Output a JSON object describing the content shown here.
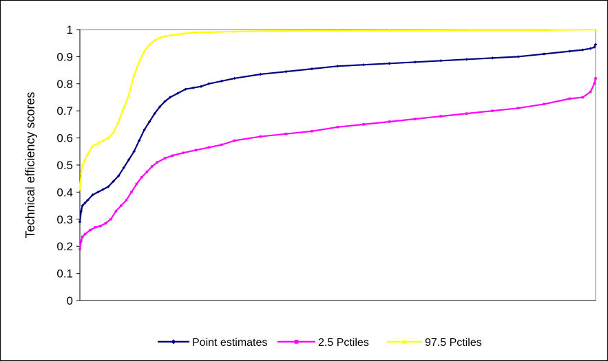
{
  "chart_data": {
    "type": "line",
    "title": "",
    "xlabel": "",
    "ylabel": "Technical efficiency scores",
    "ylim": [
      0,
      1
    ],
    "yticks": [
      "0",
      "0.1",
      "0.2",
      "0.3",
      "0.4",
      "0.5",
      "0.6",
      "0.7",
      "0.8",
      "0.9",
      "1"
    ],
    "x_range": [
      0,
      200
    ],
    "grid": false,
    "legend_position": "bottom",
    "series": [
      {
        "name": "Point estimates",
        "color": "#000080",
        "marker": "diamond",
        "x": [
          0,
          0.5,
          1,
          2,
          3,
          5,
          7,
          9,
          11,
          13,
          15,
          17,
          19,
          21,
          23,
          25,
          27,
          29,
          31,
          33,
          35,
          38,
          41,
          44,
          47,
          50,
          55,
          60,
          70,
          80,
          90,
          100,
          110,
          120,
          130,
          140,
          150,
          160,
          170,
          180,
          190,
          195,
          198,
          199.5,
          200
        ],
        "y": [
          0.29,
          0.33,
          0.35,
          0.36,
          0.37,
          0.39,
          0.4,
          0.41,
          0.42,
          0.44,
          0.46,
          0.49,
          0.52,
          0.55,
          0.59,
          0.63,
          0.66,
          0.69,
          0.715,
          0.735,
          0.75,
          0.765,
          0.78,
          0.785,
          0.79,
          0.8,
          0.81,
          0.82,
          0.835,
          0.845,
          0.855,
          0.865,
          0.87,
          0.875,
          0.88,
          0.885,
          0.89,
          0.895,
          0.9,
          0.91,
          0.92,
          0.925,
          0.93,
          0.935,
          0.945
        ]
      },
      {
        "name": "2.5 Pctiles",
        "color": "#FF00FF",
        "marker": "square",
        "x": [
          0,
          0.5,
          1,
          2,
          4,
          6,
          8,
          10,
          12,
          14,
          16,
          18,
          20,
          22,
          24,
          26,
          28,
          30,
          33,
          36,
          40,
          45,
          50,
          55,
          60,
          70,
          80,
          90,
          100,
          110,
          120,
          130,
          140,
          150,
          160,
          170,
          180,
          190,
          195,
          198,
          199.5,
          200
        ],
        "y": [
          0.19,
          0.22,
          0.235,
          0.245,
          0.26,
          0.27,
          0.275,
          0.285,
          0.3,
          0.33,
          0.35,
          0.37,
          0.4,
          0.43,
          0.455,
          0.475,
          0.495,
          0.51,
          0.525,
          0.535,
          0.545,
          0.555,
          0.565,
          0.575,
          0.59,
          0.605,
          0.615,
          0.625,
          0.64,
          0.65,
          0.66,
          0.67,
          0.68,
          0.69,
          0.7,
          0.71,
          0.725,
          0.745,
          0.75,
          0.77,
          0.8,
          0.82
        ]
      },
      {
        "name": "97.5 Pctiles",
        "color": "#FFFF00",
        "marker": "triangle",
        "x": [
          0,
          0.5,
          1,
          2,
          3,
          5,
          7,
          9,
          11,
          13,
          15,
          17,
          19,
          21,
          23,
          25,
          27,
          29,
          31,
          33,
          36,
          40,
          45,
          50,
          60,
          80,
          100,
          120,
          150,
          180,
          200
        ],
        "y": [
          0.41,
          0.47,
          0.5,
          0.52,
          0.54,
          0.57,
          0.58,
          0.59,
          0.6,
          0.62,
          0.66,
          0.71,
          0.76,
          0.83,
          0.88,
          0.92,
          0.945,
          0.96,
          0.97,
          0.975,
          0.98,
          0.985,
          0.99,
          0.99,
          0.993,
          0.995,
          0.996,
          0.997,
          0.998,
          0.998,
          1.0
        ]
      }
    ]
  }
}
